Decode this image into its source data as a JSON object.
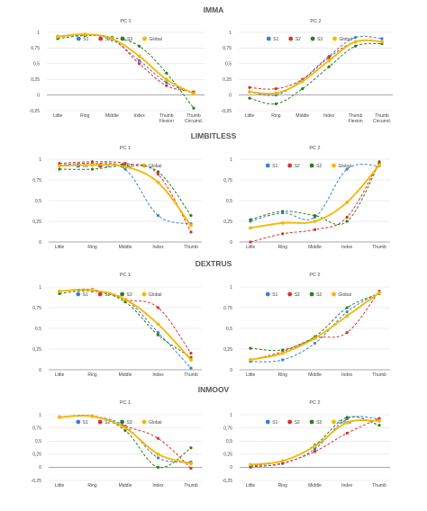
{
  "colors": {
    "S1": "#3b7fd9",
    "S2": "#d9332e",
    "S3": "#2e7d1f",
    "Global": "#f5b700",
    "grid": "#d9d9d9",
    "axis": "#8c8c8c",
    "text": "#444444",
    "section": "#555555"
  },
  "legend": [
    "S1",
    "S2",
    "S3",
    "Global"
  ],
  "chart_data": [
    {
      "section": "IMMA",
      "title": "PC 1",
      "type": "line",
      "categories": [
        "Little",
        "Ring",
        "Middle",
        "Index",
        "Thumb\nFlexion",
        "Thumb\nCircumd."
      ],
      "yticks": [
        "1",
        "0,75",
        "0,5",
        "0,25",
        "0",
        "-0,25"
      ],
      "ylim": [
        -0.25,
        1
      ],
      "series": [
        {
          "name": "S1",
          "values": [
            0.94,
            0.97,
            0.88,
            0.55,
            0.2,
            0.03
          ]
        },
        {
          "name": "S2",
          "values": [
            0.93,
            0.96,
            0.9,
            0.5,
            0.15,
            0.05
          ]
        },
        {
          "name": "S3",
          "values": [
            0.9,
            0.95,
            0.92,
            0.78,
            0.35,
            -0.21
          ]
        },
        {
          "name": "Global",
          "values": [
            0.93,
            0.97,
            0.9,
            0.62,
            0.25,
            0.02
          ]
        }
      ]
    },
    {
      "section": "",
      "title": "PC 2",
      "type": "line",
      "categories": [
        "Little",
        "Ring",
        "Middle",
        "Index",
        "Thumb\nFlexion",
        "Thumb\nCircumd."
      ],
      "yticks": [
        "1",
        "0,75",
        "0,5",
        "0,25",
        "0",
        "-0,25"
      ],
      "ylim": [
        -0.25,
        1
      ],
      "series": [
        {
          "name": "S1",
          "values": [
            0.05,
            0.0,
            0.25,
            0.62,
            0.92,
            0.9
          ]
        },
        {
          "name": "S2",
          "values": [
            0.12,
            0.1,
            0.25,
            0.6,
            0.85,
            0.85
          ]
        },
        {
          "name": "S3",
          "values": [
            -0.05,
            -0.14,
            0.1,
            0.45,
            0.78,
            0.82
          ]
        },
        {
          "name": "Global",
          "values": [
            0.05,
            0.03,
            0.22,
            0.55,
            0.85,
            0.85
          ]
        }
      ]
    },
    {
      "section": "LIMBITLESS",
      "title": "PC 1",
      "type": "line",
      "categories": [
        "Little",
        "Ring",
        "Middle",
        "Index",
        "Thumb"
      ],
      "yticks": [
        "1",
        "0,75",
        "0,5",
        "0,25",
        "0"
      ],
      "ylim": [
        0,
        1
      ],
      "series": [
        {
          "name": "S1",
          "values": [
            0.93,
            0.95,
            0.88,
            0.32,
            0.22
          ]
        },
        {
          "name": "S2",
          "values": [
            0.95,
            0.97,
            0.95,
            0.82,
            0.12
          ]
        },
        {
          "name": "S3",
          "values": [
            0.88,
            0.88,
            0.92,
            0.85,
            0.32
          ]
        },
        {
          "name": "Global",
          "values": [
            0.92,
            0.93,
            0.91,
            0.72,
            0.2
          ]
        }
      ]
    },
    {
      "section": "",
      "title": "PC 2",
      "type": "line",
      "categories": [
        "Little",
        "Ring",
        "Middle",
        "Index",
        "Thumb"
      ],
      "yticks": [
        "1",
        "0,75",
        "0,5",
        "0,25",
        "0"
      ],
      "ylim": [
        0,
        1
      ],
      "series": [
        {
          "name": "S1",
          "values": [
            0.25,
            0.35,
            0.3,
            0.88,
            0.92
          ]
        },
        {
          "name": "S2",
          "values": [
            0.0,
            0.1,
            0.15,
            0.3,
            0.97
          ]
        },
        {
          "name": "S3",
          "values": [
            0.27,
            0.37,
            0.32,
            0.25,
            0.95
          ]
        },
        {
          "name": "Global",
          "values": [
            0.17,
            0.23,
            0.25,
            0.48,
            0.93
          ]
        }
      ]
    },
    {
      "section": "DEXTRUS",
      "title": "PC 1",
      "type": "line",
      "categories": [
        "Little",
        "Ring",
        "Middle",
        "Index",
        "Thumb"
      ],
      "yticks": [
        "1",
        "0,75",
        "0,5",
        "0,25",
        "0"
      ],
      "ylim": [
        0,
        1
      ],
      "series": [
        {
          "name": "S1",
          "values": [
            0.95,
            0.96,
            0.85,
            0.45,
            0.02
          ]
        },
        {
          "name": "S2",
          "values": [
            0.95,
            0.97,
            0.85,
            0.75,
            0.2
          ]
        },
        {
          "name": "S3",
          "values": [
            0.92,
            0.95,
            0.82,
            0.42,
            0.15
          ]
        },
        {
          "name": "Global",
          "values": [
            0.95,
            0.96,
            0.85,
            0.55,
            0.12
          ]
        }
      ]
    },
    {
      "section": "",
      "title": "PC 2",
      "type": "line",
      "categories": [
        "Little",
        "Ring",
        "Middle",
        "Index",
        "Thumb"
      ],
      "yticks": [
        "1",
        "0,75",
        "0,5",
        "0,25",
        "0"
      ],
      "ylim": [
        0,
        1
      ],
      "series": [
        {
          "name": "S1",
          "values": [
            0.1,
            0.12,
            0.32,
            0.7,
            0.93
          ]
        },
        {
          "name": "S2",
          "values": [
            0.12,
            0.22,
            0.38,
            0.45,
            0.95
          ]
        },
        {
          "name": "S3",
          "values": [
            0.26,
            0.24,
            0.4,
            0.75,
            0.92
          ]
        },
        {
          "name": "Global",
          "values": [
            0.12,
            0.2,
            0.38,
            0.65,
            0.93
          ]
        }
      ]
    },
    {
      "section": "INMOOV",
      "title": "PC 1",
      "type": "line",
      "categories": [
        "Little",
        "Ring",
        "Middle",
        "Index",
        "Thumb"
      ],
      "yticks": [
        "1",
        "0,75",
        "0,5",
        "0,25",
        "0",
        "-0,25"
      ],
      "ylim": [
        -0.25,
        1
      ],
      "series": [
        {
          "name": "S1",
          "values": [
            0.95,
            0.97,
            0.78,
            0.18,
            0.1
          ]
        },
        {
          "name": "S2",
          "values": [
            0.96,
            0.98,
            0.78,
            0.55,
            -0.02
          ]
        },
        {
          "name": "S3",
          "values": [
            0.95,
            0.97,
            0.7,
            0.0,
            0.37
          ]
        },
        {
          "name": "Global",
          "values": [
            0.95,
            0.97,
            0.75,
            0.25,
            0.07
          ]
        }
      ]
    },
    {
      "section": "",
      "title": "PC 2",
      "type": "line",
      "categories": [
        "Little",
        "Ring",
        "Middle",
        "Index",
        "Thumb"
      ],
      "yticks": [
        "1",
        "0,75",
        "0,5",
        "0,25",
        "0",
        "-0,25"
      ],
      "ylim": [
        -0.25,
        1
      ],
      "series": [
        {
          "name": "S1",
          "values": [
            0.02,
            0.07,
            0.35,
            0.92,
            0.92
          ]
        },
        {
          "name": "S2",
          "values": [
            0.0,
            0.08,
            0.3,
            0.65,
            0.93
          ]
        },
        {
          "name": "S3",
          "values": [
            0.03,
            0.12,
            0.42,
            0.95,
            0.8
          ]
        },
        {
          "name": "Global",
          "values": [
            0.05,
            0.12,
            0.4,
            0.85,
            0.88
          ]
        }
      ]
    }
  ]
}
